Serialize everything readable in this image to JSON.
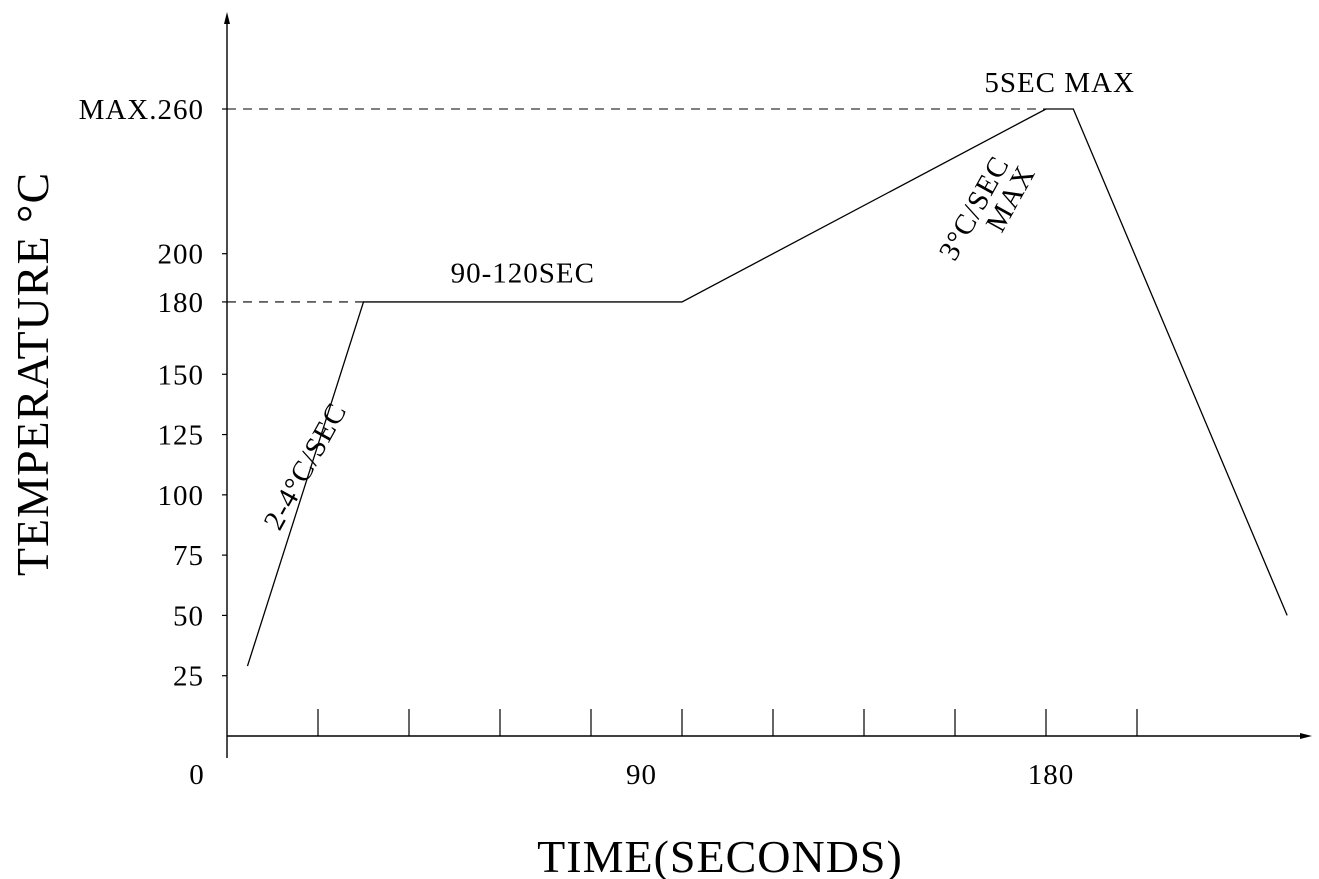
{
  "chart_data": {
    "type": "line",
    "title": "",
    "xlabel": "TIME(SECONDS)",
    "ylabel": "TEMPERATURE °C",
    "xlim": [
      0,
      240
    ],
    "ylim": [
      0,
      300
    ],
    "x_ticks": [
      0,
      20,
      40,
      60,
      80,
      100,
      120,
      140,
      160,
      180,
      200
    ],
    "x_tick_labels": [
      {
        "x": 0,
        "label": "0"
      },
      {
        "x": 90,
        "label": "90"
      },
      {
        "x": 180,
        "label": "180"
      }
    ],
    "y_ticks": [
      {
        "y": 25,
        "label": "25"
      },
      {
        "y": 50,
        "label": "50"
      },
      {
        "y": 75,
        "label": "75"
      },
      {
        "y": 100,
        "label": "100"
      },
      {
        "y": 125,
        "label": "125"
      },
      {
        "y": 150,
        "label": "150"
      },
      {
        "y": 180,
        "label": "180"
      },
      {
        "y": 200,
        "label": "200"
      },
      {
        "y": 260,
        "label": "MAX.260"
      }
    ],
    "series": [
      {
        "x": [
          4.5,
          30,
          100,
          180,
          186,
          233
        ],
        "y": [
          29,
          180,
          180,
          260,
          260,
          50
        ]
      }
    ],
    "reference_lines": [
      {
        "y": 180,
        "x_end": 30
      },
      {
        "y": 260,
        "x_end": 180
      }
    ],
    "annotations": [
      {
        "text": "2-4°C/SEC",
        "x": 19,
        "y": 110,
        "rotation": -61
      },
      {
        "text": "90-120SEC",
        "x": 65,
        "y": 188,
        "rotation": 0
      },
      {
        "text": "3°C/SEC",
        "x": 166,
        "y": 217,
        "rotation": -61
      },
      {
        "text": "MAX",
        "x": 174,
        "y": 221,
        "rotation": -61
      },
      {
        "text": "5SEC MAX",
        "x": 183,
        "y": 267,
        "rotation": 0
      }
    ],
    "grid": false,
    "legend": "none"
  }
}
